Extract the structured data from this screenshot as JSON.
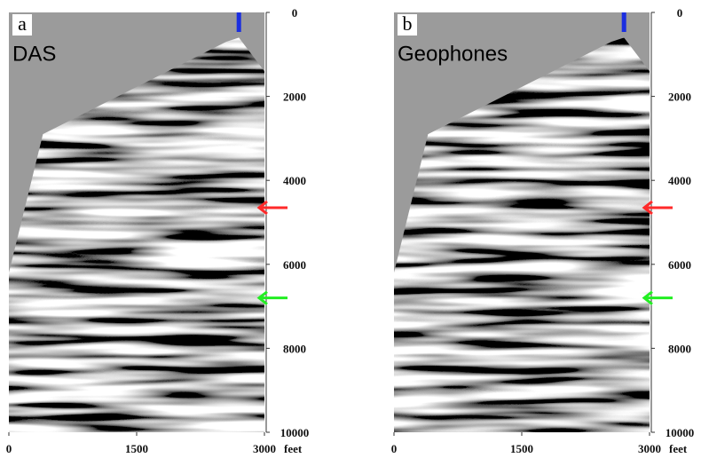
{
  "chart_data": [
    {
      "type": "seismic",
      "panel_label": "a",
      "title": "DAS",
      "xlim": [
        0,
        3000
      ],
      "ylim": [
        0,
        10000
      ],
      "xticks": [
        0,
        1500,
        3000
      ],
      "yticks": [
        0,
        2000,
        4000,
        6000,
        8000,
        10000
      ],
      "x_unit": "feet",
      "source_x": 2700,
      "source_color": "#1a2ee0",
      "arrows": [
        {
          "y": 4650,
          "color": "#ff2a2a"
        },
        {
          "y": 6800,
          "color": "#22ee22"
        }
      ]
    },
    {
      "type": "seismic",
      "panel_label": "b",
      "title": "Geophones",
      "xlim": [
        0,
        3000
      ],
      "ylim": [
        0,
        10000
      ],
      "xticks": [
        0,
        1500,
        3000
      ],
      "yticks": [
        0,
        2000,
        4000,
        6000,
        8000,
        10000
      ],
      "x_unit": "feet",
      "source_x": 2700,
      "source_color": "#1a2ee0",
      "arrows": [
        {
          "y": 4650,
          "color": "#ff2a2a"
        },
        {
          "y": 6800,
          "color": "#22ee22"
        }
      ]
    }
  ]
}
